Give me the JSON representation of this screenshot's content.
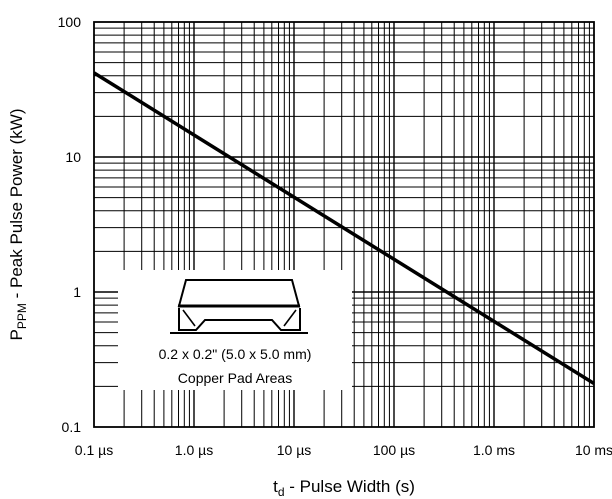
{
  "chart_data": {
    "type": "line",
    "title": "",
    "x_scale": "log",
    "y_scale": "log",
    "xlim": [
      1e-07,
      0.01
    ],
    "ylim": [
      0.1,
      100
    ],
    "grid": true,
    "xlabel": {
      "main": "t",
      "sub": "d",
      "rest": " - Pulse Width (s)"
    },
    "ylabel": {
      "main": "P",
      "sub": "PPM",
      "rest": " - Peak Pulse Power (kW)"
    },
    "x_ticks": [
      {
        "value": 1e-07,
        "label": "0.1 µs"
      },
      {
        "value": 1e-06,
        "label": "1.0 µs"
      },
      {
        "value": 1e-05,
        "label": "10 µs"
      },
      {
        "value": 0.0001,
        "label": "100 µs"
      },
      {
        "value": 0.001,
        "label": "1.0 ms"
      },
      {
        "value": 0.01,
        "label": "10 ms"
      }
    ],
    "y_ticks": [
      {
        "value": 0.1,
        "label": "0.1"
      },
      {
        "value": 1,
        "label": "1"
      },
      {
        "value": 10,
        "label": "10"
      },
      {
        "value": 100,
        "label": "100"
      }
    ],
    "series": [
      {
        "x": [
          1e-07,
          0.01
        ],
        "y": [
          42,
          0.21
        ]
      }
    ],
    "annotation": {
      "lines": [
        "0.2 x 0.2\" (5.0 x 5.0 mm)",
        "Copper Pad Areas"
      ],
      "icon": "smd-package-on-copper-pad-icon"
    }
  }
}
